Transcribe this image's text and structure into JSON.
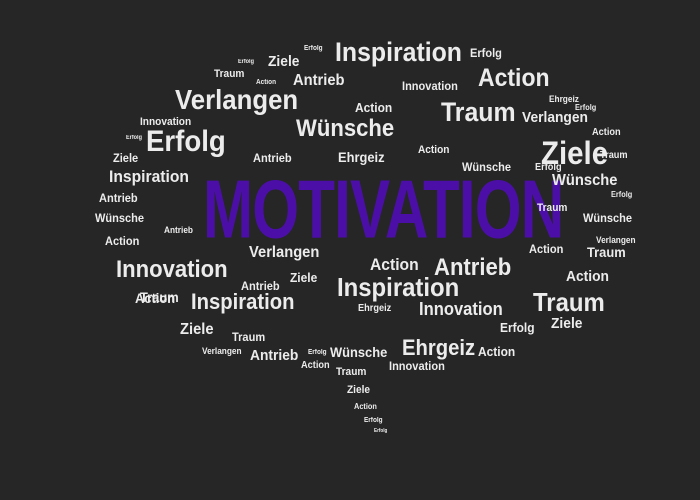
{
  "main_word": {
    "text": "MOTIVATION",
    "color": "#4b0fa8"
  },
  "word_color": "#ececec",
  "background": "#262626",
  "words": [
    "Erfolg",
    "Ziele",
    "Erfolg",
    "Inspiration",
    "Erfolg",
    "Traum",
    "Action",
    "Antrieb",
    "Innovation",
    "Action",
    "Verlangen",
    "Ehrgeiz",
    "Erfolg",
    "Innovation",
    "Action",
    "Traum",
    "Verlangen",
    "Wünsche",
    "Erfolg",
    "Action",
    "Erfolg",
    "Erfolg",
    "Ziele",
    "Traum",
    "Ziele",
    "Antrieb",
    "Ehrgeiz",
    "Action",
    "Wünsche",
    "Inspiration",
    "Wünsche",
    "Erfolg",
    "Antrieb",
    "Traum",
    "Wünsche",
    "Wünsche",
    "Antrieb",
    "Action",
    "Action",
    "Verlangen",
    "Verlangen",
    "Traum",
    "Action",
    "Innovation",
    "Antrieb",
    "Antrieb",
    "Action",
    "Ziele",
    "Inspiration",
    "Traum",
    "Inspiration",
    "Action",
    "Traum",
    "Ehrgeiz",
    "Innovation",
    "Erfolg",
    "Ziele",
    "Ziele",
    "Traum",
    "Verlangen",
    "Antrieb",
    "Erfolg",
    "Wünsche",
    "Ehrgeiz",
    "Action",
    "Innovation",
    "Action",
    "Traum",
    "Ziele",
    "Action",
    "Erfolg",
    "Erfolg"
  ]
}
